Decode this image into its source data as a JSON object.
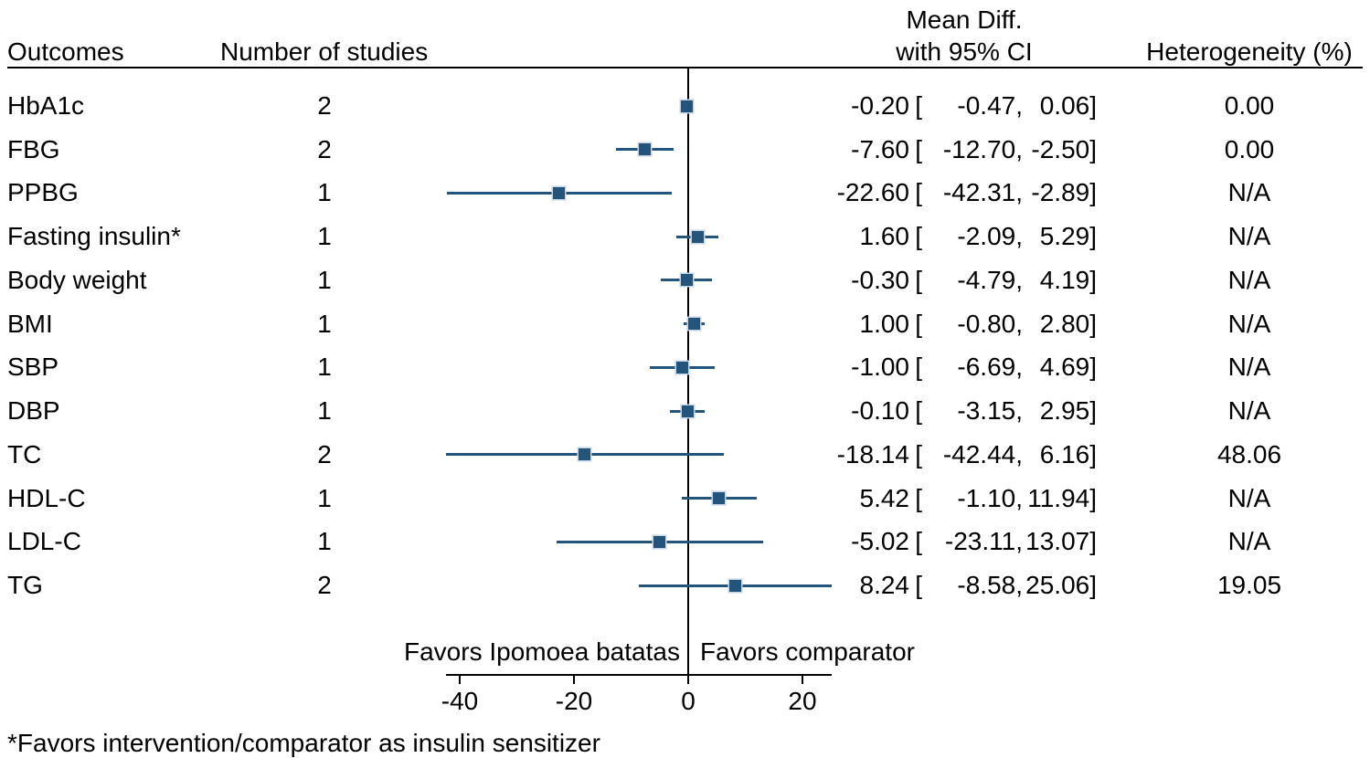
{
  "columns": {
    "outcomes": "Outcomes",
    "n_studies": "Number of studies",
    "mean_diff_line1": "Mean Diff.",
    "mean_diff_line2": "with 95% CI",
    "heterogeneity": "Heterogeneity (%)"
  },
  "format": {
    "open_bracket": "[",
    "comma": ",",
    "close_bracket": "]"
  },
  "rows": [
    {
      "label": "HbA1c",
      "n": "2",
      "effect": "-0.20",
      "ci_low": "-0.47",
      "ci_high": "0.06",
      "het": "0.00"
    },
    {
      "label": "FBG",
      "n": "2",
      "effect": "-7.60",
      "ci_low": "-12.70",
      "ci_high": "-2.50",
      "het": "0.00"
    },
    {
      "label": "PPBG",
      "n": "1",
      "effect": "-22.60",
      "ci_low": "-42.31",
      "ci_high": "-2.89",
      "het": "N/A"
    },
    {
      "label": "Fasting insulin*",
      "n": "1",
      "effect": "1.60",
      "ci_low": "-2.09",
      "ci_high": "5.29",
      "het": "N/A"
    },
    {
      "label": "Body weight",
      "n": "1",
      "effect": "-0.30",
      "ci_low": "-4.79",
      "ci_high": "4.19",
      "het": "N/A"
    },
    {
      "label": "BMI",
      "n": "1",
      "effect": "1.00",
      "ci_low": "-0.80",
      "ci_high": "2.80",
      "het": "N/A"
    },
    {
      "label": "SBP",
      "n": "1",
      "effect": "-1.00",
      "ci_low": "-6.69",
      "ci_high": "4.69",
      "het": "N/A"
    },
    {
      "label": "DBP",
      "n": "1",
      "effect": "-0.10",
      "ci_low": "-3.15",
      "ci_high": "2.95",
      "het": "N/A"
    },
    {
      "label": "TC",
      "n": "2",
      "effect": "-18.14",
      "ci_low": "-42.44",
      "ci_high": "6.16",
      "het": "48.06"
    },
    {
      "label": "HDL-C",
      "n": "1",
      "effect": "5.42",
      "ci_low": "-1.10",
      "ci_high": "11.94",
      "het": "N/A"
    },
    {
      "label": "LDL-C",
      "n": "1",
      "effect": "-5.02",
      "ci_low": "-23.11",
      "ci_high": "13.07",
      "het": "N/A"
    },
    {
      "label": "TG",
      "n": "2",
      "effect": "8.24",
      "ci_low": "-8.58",
      "ci_high": "25.06",
      "het": "19.05"
    }
  ],
  "axis": {
    "ticks": [
      "-40",
      "-20",
      "0",
      "20"
    ],
    "favors_left": "Favors Ipomoea batatas",
    "favors_right": "Favors comparator"
  },
  "footnote": "*Favors intervention/comparator as insulin sensitizer",
  "colors": {
    "marker": "#22547c",
    "marker_edge": "#c5d4e2",
    "ci_line": "#22547c",
    "axis": "#000000"
  },
  "chart_data": {
    "type": "scatter",
    "subtype": "forest-plot",
    "title": "",
    "categories": [
      "HbA1c",
      "FBG",
      "PPBG",
      "Fasting insulin*",
      "Body weight",
      "BMI",
      "SBP",
      "DBP",
      "TC",
      "HDL-C",
      "LDL-C",
      "TG"
    ],
    "n_studies": [
      2,
      2,
      1,
      1,
      1,
      1,
      1,
      1,
      2,
      1,
      1,
      2
    ],
    "series": [
      {
        "name": "Mean Diff.",
        "values": [
          -0.2,
          -7.6,
          -22.6,
          1.6,
          -0.3,
          1.0,
          -1.0,
          -0.1,
          -18.14,
          5.42,
          -5.02,
          8.24
        ]
      },
      {
        "name": "95% CI lower",
        "values": [
          -0.47,
          -12.7,
          -42.31,
          -2.09,
          -4.79,
          -0.8,
          -6.69,
          -3.15,
          -42.44,
          -1.1,
          -23.11,
          -8.58
        ]
      },
      {
        "name": "95% CI upper",
        "values": [
          0.06,
          -2.5,
          -2.89,
          5.29,
          4.19,
          2.8,
          4.69,
          2.95,
          6.16,
          11.94,
          13.07,
          25.06
        ]
      }
    ],
    "heterogeneity_pct": [
      "0.00",
      "0.00",
      "N/A",
      "N/A",
      "N/A",
      "N/A",
      "N/A",
      "N/A",
      "48.06",
      "N/A",
      "N/A",
      "19.05"
    ],
    "xlabel": "",
    "ylabel": "",
    "x_ticks": [
      -40,
      -20,
      0,
      20
    ],
    "xlim": [
      -42.44,
      25.06
    ],
    "reference_line_x": 0,
    "grid": false,
    "legend_position": "none",
    "annotations": [
      "Favors Ipomoea batatas",
      "Favors comparator",
      "*Favors intervention/comparator as insulin sensitizer"
    ]
  }
}
